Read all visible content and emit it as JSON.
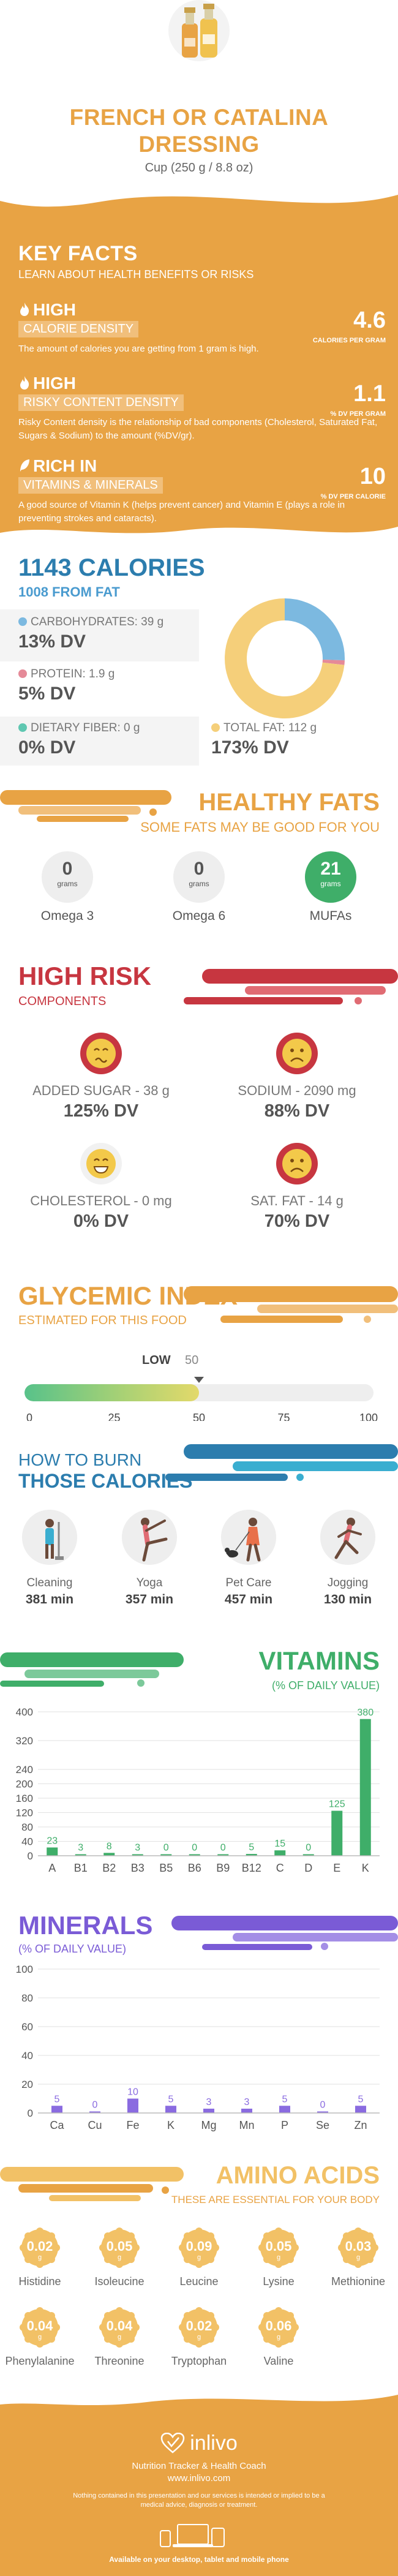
{
  "header": {
    "title_line1": "FRENCH OR CATALINA",
    "title_line2": "DRESSING",
    "serving": "Cup (250 g / 8.8 oz)",
    "image_icon": "dressing-bottles-icon"
  },
  "key_facts": {
    "title": "KEY FACTS",
    "subtitle": "LEARN ABOUT HEALTH BENEFITS OR RISKS",
    "items": [
      {
        "level": "HIGH",
        "name": "CALORIE DENSITY",
        "value": "4.6",
        "unit": "CALORIES PER GRAM",
        "description": "The amount of calories you are getting from 1 gram is high.",
        "icon": "flame-icon"
      },
      {
        "level": "HIGH",
        "name": "RISKY CONTENT DENSITY",
        "value": "1.1",
        "unit": "% DV PER GRAM",
        "description": "Risky Content density is the relationship of bad components (Cholesterol, Saturated Fat, Sugars & Sodium) to the amount (%DV/gr).",
        "icon": "flame-icon"
      },
      {
        "level": "RICH  IN",
        "name": "VITAMINS & MINERALS",
        "value": "10",
        "unit": "% DV PER CALORIE",
        "description": "A good source of Vitamin K (helps prevent cancer) and Vitamin E (plays a role in preventing strokes and cataracts).",
        "icon": "leaf-icon"
      }
    ]
  },
  "calories": {
    "title": "1143 CALORIES",
    "from_fat": "1008 FROM FAT",
    "nutrients": [
      {
        "label": "CARBOHYDRATES: 39 g",
        "dv": "13% DV",
        "color": "#7cb9e0",
        "grams": 39
      },
      {
        "label": "PROTEIN: 1.9 g",
        "dv": "5% DV",
        "color": "#e58a98",
        "grams": 1.9
      },
      {
        "label": "DIETARY FIBER: 0 g",
        "dv": "0% DV",
        "color": "#5fc7b1",
        "grams": 0
      },
      {
        "label": "TOTAL FAT: 112 g",
        "dv": "173% DV",
        "color": "#f5cf7a",
        "grams": 112
      }
    ]
  },
  "fats": {
    "title": "HEALTHY FATS",
    "subtitle": "SOME FATS MAY BE GOOD FOR YOU",
    "unit": "grams",
    "items": [
      {
        "value": "0",
        "label": "Omega 3",
        "highlight": false
      },
      {
        "value": "0",
        "label": "Omega 6",
        "highlight": false
      },
      {
        "value": "21",
        "label": "MUFAs",
        "highlight": true
      }
    ]
  },
  "risk": {
    "title": "HIGH RISK",
    "subtitle": "COMPONENTS",
    "items": [
      {
        "label": "ADDED SUGAR - 38 g",
        "dv": "125% DV",
        "face": "sick-face-icon"
      },
      {
        "label": "SODIUM - 2090 mg",
        "dv": "88% DV",
        "face": "sad-face-icon"
      },
      {
        "label": "CHOLESTEROL - 0 mg",
        "dv": "0% DV",
        "face": "happy-face-icon"
      },
      {
        "label": "SAT. FAT - 14 g",
        "dv": "70% DV",
        "face": "sad-face-icon"
      }
    ]
  },
  "glycemic": {
    "title": "GLYCEMIC INDEX",
    "subtitle": "ESTIMATED FOR THIS FOOD",
    "level": "LOW",
    "value_label": "50",
    "value": 50,
    "max": 100,
    "ticks": [
      "0",
      "25",
      "50",
      "75",
      "100"
    ]
  },
  "burn": {
    "title_line1": "HOW TO BURN",
    "title_line2": "THOSE CALORIES",
    "activities": [
      {
        "label": "Cleaning",
        "minutes": "381 min",
        "icon": "cleaning-icon"
      },
      {
        "label": "Yoga",
        "minutes": "357 min",
        "icon": "yoga-icon"
      },
      {
        "label": "Pet Care",
        "minutes": "457 min",
        "icon": "dog-walking-icon"
      },
      {
        "label": "Jogging",
        "minutes": "130 min",
        "icon": "jogging-icon"
      }
    ]
  },
  "vitamins": {
    "title": "VITAMINS",
    "subtitle": "(% OF DAILY VALUE)",
    "bar_color": "#3fae69"
  },
  "minerals": {
    "title": "MINERALS",
    "subtitle": "(% OF DAILY VALUE)",
    "bar_color": "#8a6be0"
  },
  "chart_data": [
    {
      "type": "bar",
      "title": "VITAMINS",
      "categories": [
        "A",
        "B1",
        "B2",
        "B3",
        "B5",
        "B6",
        "B9",
        "B12",
        "C",
        "D",
        "E",
        "K"
      ],
      "values": [
        23,
        3,
        8,
        3,
        0,
        0,
        0,
        5,
        15,
        0,
        125,
        380
      ],
      "value_labels": [
        "23",
        "3",
        "8",
        "3",
        "0",
        "0",
        "0",
        "5",
        "15",
        "0",
        "125",
        "380"
      ],
      "yticks": [
        "0",
        "40",
        "80",
        "120",
        "160",
        "200",
        "240",
        "320",
        "400"
      ],
      "ytick_values": [
        0,
        40,
        80,
        120,
        160,
        200,
        240,
        320,
        400
      ],
      "ylim": [
        0,
        400
      ],
      "grid": true
    },
    {
      "type": "bar",
      "title": "MINERALS",
      "categories": [
        "Ca",
        "Cu",
        "Fe",
        "K",
        "Mg",
        "Mn",
        "P",
        "Se",
        "Zn"
      ],
      "values": [
        5,
        0,
        10,
        5,
        3,
        3,
        5,
        0,
        5
      ],
      "value_labels": [
        "5",
        "0",
        "10",
        "5",
        "3",
        "3",
        "5",
        "0",
        "5"
      ],
      "yticks": [
        "0",
        "20",
        "40",
        "60",
        "80",
        "100"
      ],
      "ytick_values": [
        0,
        20,
        40,
        60,
        80,
        100
      ],
      "ylim": [
        0,
        100
      ],
      "grid": true
    }
  ],
  "amino": {
    "title": "AMINO ACIDS",
    "subtitle": "THESE ARE ESSENTIAL FOR YOUR BODY",
    "unit": "g",
    "items": [
      {
        "value": "0.02",
        "label": "Histidine"
      },
      {
        "value": "0.05",
        "label": "Isoleucine"
      },
      {
        "value": "0.09",
        "label": "Leucine"
      },
      {
        "value": "0.05",
        "label": "Lysine"
      },
      {
        "value": "0.03",
        "label": "Methionine"
      },
      {
        "value": "0.04",
        "label": "Phenylalanine"
      },
      {
        "value": "0.04",
        "label": "Threonine"
      },
      {
        "value": "0.02",
        "label": "Tryptophan"
      },
      {
        "value": "0.06",
        "label": "Valine"
      }
    ]
  },
  "footer": {
    "brand": "inlivo",
    "tagline": "Nutrition Tracker & Health Coach",
    "url": "www.inlivo.com",
    "disclaimer": "Nothing contained in this presentation and our services is intended or implied to be a medical advice, diagnosis or treatment.",
    "availability": "Available on your desktop, tablet and mobile phone"
  }
}
